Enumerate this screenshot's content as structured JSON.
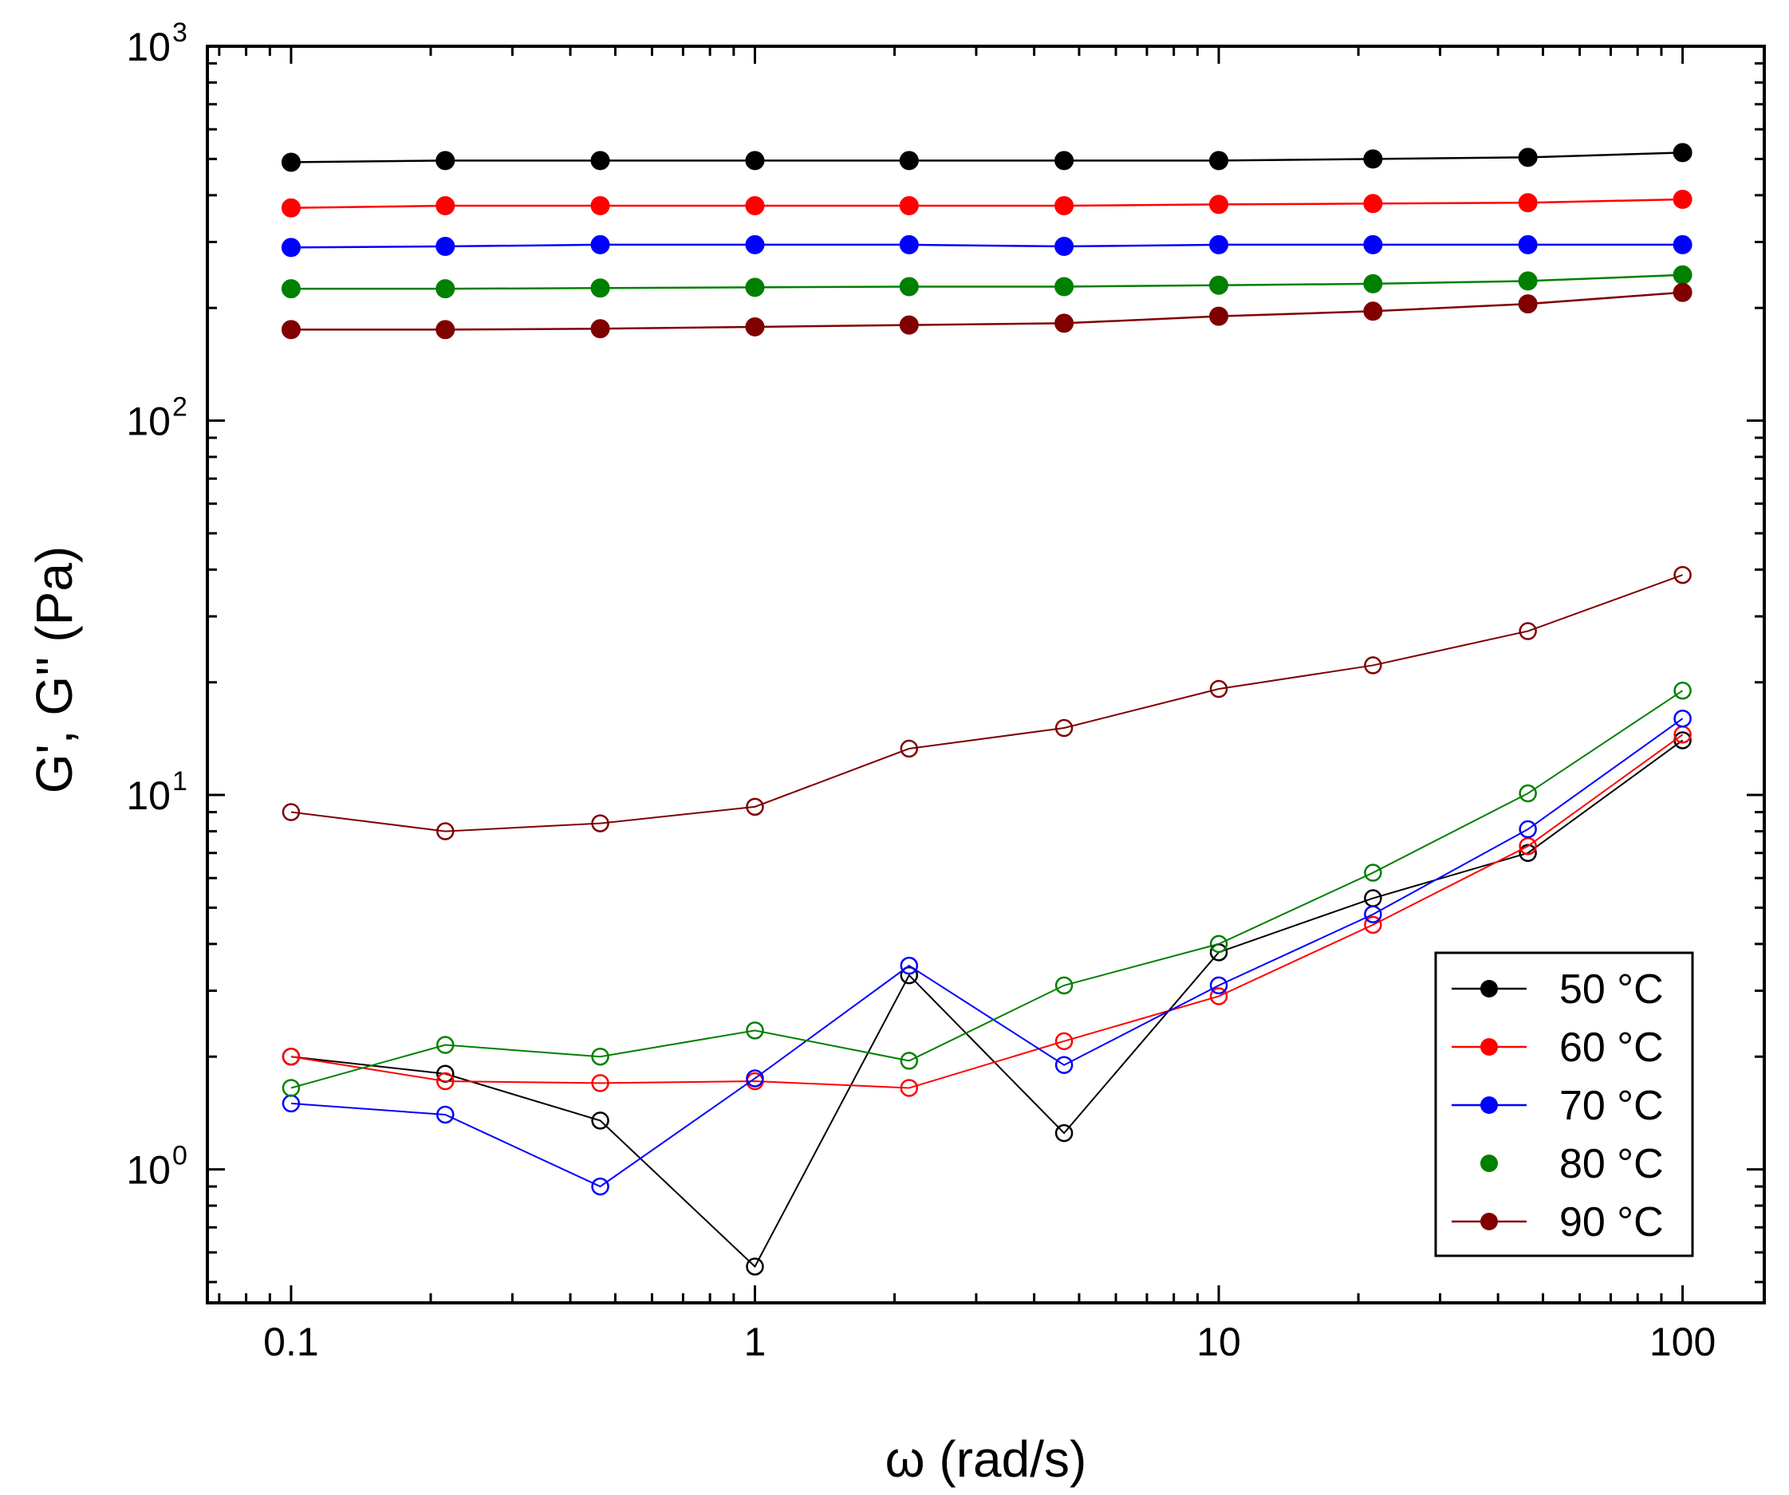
{
  "chart_data": {
    "type": "line",
    "title": "",
    "xlabel": "ω (rad/s)",
    "ylabel": "G', G'' (Pa)",
    "xscale": "log",
    "yscale": "log",
    "xlim": [
      0.066,
      150
    ],
    "ylim": [
      0.44,
      1000
    ],
    "x_ticks": [
      {
        "value": 0.1,
        "label": "0.1"
      },
      {
        "value": 1,
        "label": "1"
      },
      {
        "value": 10,
        "label": "10"
      },
      {
        "value": 100,
        "label": "100"
      }
    ],
    "y_ticks": [
      {
        "value": 1,
        "base": "10",
        "exp": "0"
      },
      {
        "value": 10,
        "base": "10",
        "exp": "1"
      },
      {
        "value": 100,
        "base": "10",
        "exp": "2"
      },
      {
        "value": 1000,
        "base": "10",
        "exp": "3"
      }
    ],
    "x": [
      0.1,
      0.215,
      0.464,
      1,
      2.15,
      4.64,
      10,
      21.5,
      46.4,
      100
    ],
    "legend": {
      "position": "bottom-right",
      "entries": [
        "50 °C",
        "60 °C",
        "70 °C",
        "80 °C",
        "90 °C"
      ]
    },
    "series": [
      {
        "name": "50 °C",
        "color": "#000000",
        "G_storage": [
          490,
          495,
          495,
          495,
          495,
          495,
          495,
          500,
          505,
          520
        ],
        "G_loss": [
          2.0,
          1.8,
          1.35,
          0.55,
          3.3,
          1.25,
          3.8,
          5.3,
          7.0,
          14.0
        ]
      },
      {
        "name": "60 °C",
        "color": "#ff0000",
        "G_storage": [
          370,
          375,
          375,
          375,
          375,
          375,
          378,
          380,
          382,
          390
        ],
        "G_loss": [
          2.0,
          1.72,
          1.7,
          1.72,
          1.65,
          2.2,
          2.9,
          4.5,
          7.3,
          14.5
        ]
      },
      {
        "name": "70 °C",
        "color": "#0000ff",
        "G_storage": [
          290,
          292,
          295,
          295,
          295,
          292,
          295,
          295,
          295,
          295
        ],
        "G_loss": [
          1.5,
          1.4,
          0.9,
          1.75,
          3.5,
          1.9,
          3.1,
          4.8,
          8.1,
          16.0
        ]
      },
      {
        "name": "80 °C",
        "color": "#008000",
        "G_storage": [
          225,
          225,
          226,
          227,
          228,
          228,
          230,
          232,
          236,
          245
        ],
        "G_loss": [
          1.65,
          2.15,
          2.0,
          2.35,
          1.95,
          3.1,
          4.0,
          6.2,
          10.1,
          19.0
        ]
      },
      {
        "name": "90 °C",
        "color": "#800000",
        "G_storage": [
          175,
          175,
          176,
          178,
          180,
          182,
          190,
          196,
          205,
          220
        ],
        "G_loss": [
          9.0,
          8.0,
          8.4,
          9.3,
          13.3,
          15.1,
          19.2,
          22.2,
          27.4,
          38.7
        ]
      }
    ]
  }
}
